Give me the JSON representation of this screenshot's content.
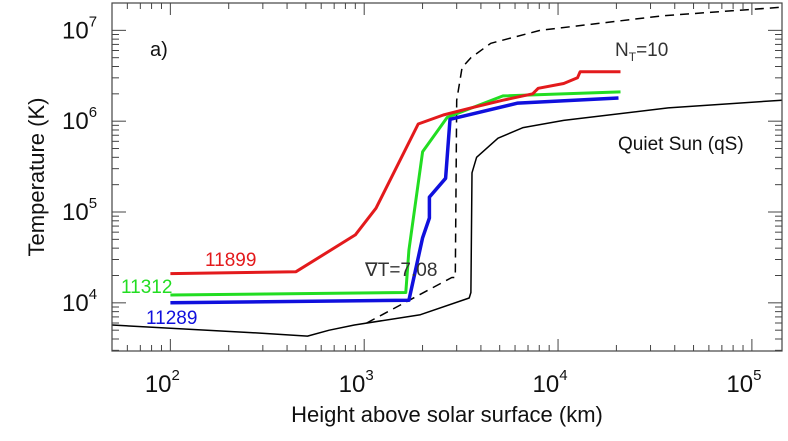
{
  "chart_data": {
    "type": "line",
    "panel_label": "a)",
    "xlabel": "Height above solar surface (km)",
    "ylabel": "Temperature (K)",
    "xscale": "log",
    "yscale": "log",
    "xlim": [
      50,
      143000
    ],
    "ylim": [
      2950,
      20000000
    ],
    "x_ticks": [
      {
        "base": "10",
        "exp": "2",
        "value": 100
      },
      {
        "base": "10",
        "exp": "3",
        "value": 1000
      },
      {
        "base": "10",
        "exp": "4",
        "value": 10000
      },
      {
        "base": "10",
        "exp": "5",
        "value": 100000
      }
    ],
    "y_ticks": [
      {
        "base": "10",
        "exp": "4",
        "value": 10000
      },
      {
        "base": "10",
        "exp": "5",
        "value": 100000
      },
      {
        "base": "10",
        "exp": "6",
        "value": 1000000
      },
      {
        "base": "10",
        "exp": "7",
        "value": 10000000
      }
    ],
    "grid": false,
    "series": [
      {
        "name": "11899",
        "color": "#e31a1c",
        "style": "solid",
        "width": 3,
        "x": [
          100,
          445,
          900,
          1150,
          1900,
          2560,
          3550,
          5200,
          7400,
          7900,
          10700,
          12600,
          13000,
          21000
        ],
        "y": [
          21000,
          22000,
          56000,
          110000,
          930000,
          1170000,
          1400000,
          1700000,
          2000000,
          2300000,
          2600000,
          3000000,
          3500000,
          3500000
        ]
      },
      {
        "name": "11312",
        "color": "#22dd22",
        "style": "solid",
        "width": 3,
        "x": [
          100,
          1640,
          1700,
          2000,
          2680,
          5200,
          21000
        ],
        "y": [
          12200,
          13000,
          38000,
          460000,
          1100000,
          1900000,
          2100000
        ]
      },
      {
        "name": "11289",
        "color": "#1010dd",
        "style": "solid",
        "width": 3.5,
        "x": [
          100,
          1700,
          2000,
          2170,
          2170,
          2630,
          2770,
          6200,
          20500
        ],
        "y": [
          10000,
          10700,
          52000,
          86000,
          146000,
          235000,
          1050000,
          1580000,
          1800000
        ]
      },
      {
        "name": "Quiet Sun (qS)",
        "color": "#000000",
        "style": "solid",
        "width": 1.5,
        "x": [
          50,
          260,
          510,
          660,
          890,
          1950,
          3480,
          3550,
          3600,
          3800,
          4900,
          6600,
          10700,
          37000,
          143000
        ],
        "y": [
          5700,
          4700,
          4300,
          5000,
          5700,
          7400,
          11300,
          13000,
          270000,
          400000,
          650000,
          850000,
          1020000,
          1400000,
          1700000
        ]
      },
      {
        "name": "∇T=7.08 / NT=10",
        "color": "#000000",
        "style": "dashed",
        "width": 1.5,
        "x": [
          1030,
          2830,
          2950,
          3000,
          3200,
          3550,
          4500,
          8100,
          35000,
          143000
        ],
        "y": [
          6000,
          19000,
          19000,
          1700000,
          3900000,
          5000000,
          7200000,
          10000000,
          14500000,
          18000000
        ]
      }
    ],
    "annotations": [
      {
        "text": "11899",
        "color": "#e31a1c"
      },
      {
        "text": "11312",
        "color": "#22dd22"
      },
      {
        "text": "11289",
        "color": "#1010dd"
      },
      {
        "text": "∇T=7.08",
        "color": "#333333"
      },
      {
        "text_main": "N",
        "text_sub": "T",
        "text_rest": "=10",
        "color": "#333333"
      },
      {
        "text": "Quiet Sun (qS)",
        "color": "#111111"
      }
    ]
  }
}
